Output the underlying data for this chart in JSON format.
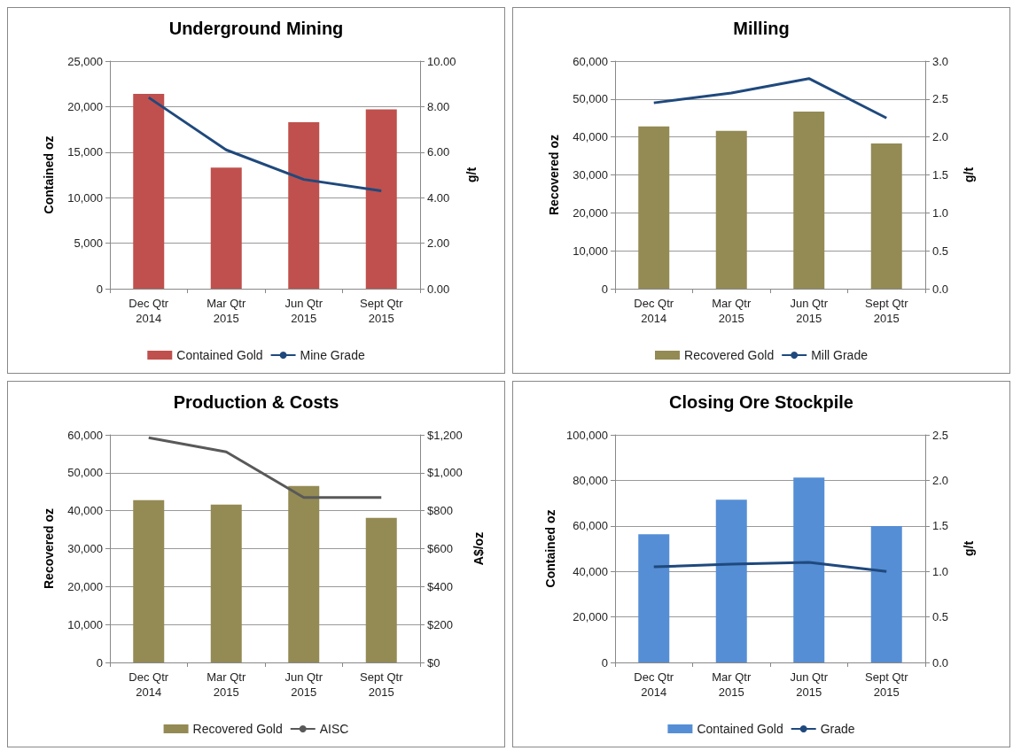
{
  "chart_data": [
    {
      "type": "bar",
      "title": "Underground Mining",
      "ylabel": "Contained oz",
      "y2label": "g/t",
      "categories": [
        "Dec Qtr\n2014",
        "Mar Qtr\n2015",
        "Jun Qtr\n2015",
        "Sept Qtr\n2015"
      ],
      "series": [
        {
          "name": "Contained Gold",
          "color": "#c0504d",
          "values": [
            21400,
            13300,
            18300,
            19700
          ]
        },
        {
          "name": "Mine Grade",
          "type": "line",
          "axis": "y2",
          "color": "#1f497d",
          "values": [
            8.4,
            6.1,
            4.8,
            4.3
          ]
        }
      ],
      "ylim": [
        0,
        25000
      ],
      "yticks": [
        {
          "value": 0,
          "label": "0"
        },
        {
          "value": 5000,
          "label": "5,000"
        },
        {
          "value": 10000,
          "label": "10,000"
        },
        {
          "value": 15000,
          "label": "15,000"
        },
        {
          "value": 20000,
          "label": "20,000"
        },
        {
          "value": 25000,
          "label": "25,000"
        }
      ],
      "y2lim": [
        0,
        10
      ],
      "y2ticks": [
        {
          "value": 0,
          "label": "0.00"
        },
        {
          "value": 2,
          "label": "2.00"
        },
        {
          "value": 4,
          "label": "4.00"
        },
        {
          "value": 6,
          "label": "6.00"
        },
        {
          "value": 8,
          "label": "8.00"
        },
        {
          "value": 10,
          "label": "10.00"
        }
      ],
      "grid": "y",
      "legend": "bottom",
      "marker": "none"
    },
    {
      "type": "bar",
      "title": "Milling",
      "ylabel": "Recovered oz",
      "y2label": "g/t",
      "categories": [
        "Dec Qtr\n2014",
        "Mar Qtr\n2015",
        "Jun Qtr\n2015",
        "Sept Qtr\n2015"
      ],
      "series": [
        {
          "name": "Recovered Gold",
          "color": "#948a54",
          "values": [
            42800,
            41600,
            46700,
            38300
          ]
        },
        {
          "name": "Mill Grade",
          "type": "line",
          "axis": "y2",
          "color": "#1f497d",
          "values": [
            2.45,
            2.58,
            2.77,
            2.25
          ]
        }
      ],
      "ylim": [
        0,
        60000
      ],
      "yticks": [
        {
          "value": 0,
          "label": "0"
        },
        {
          "value": 10000,
          "label": "10,000"
        },
        {
          "value": 20000,
          "label": "20,000"
        },
        {
          "value": 30000,
          "label": "30,000"
        },
        {
          "value": 40000,
          "label": "40,000"
        },
        {
          "value": 50000,
          "label": "50,000"
        },
        {
          "value": 60000,
          "label": "60,000"
        }
      ],
      "y2lim": [
        0,
        3
      ],
      "y2ticks": [
        {
          "value": 0,
          "label": "0.0"
        },
        0.5,
        {
          "value": 1,
          "label": "1.0"
        },
        1.5,
        {
          "value": 2,
          "label": "2.0"
        },
        2.5,
        {
          "value": 3,
          "label": "3.0"
        }
      ],
      "grid": "y",
      "legend": "bottom",
      "marker": "none"
    },
    {
      "type": "bar",
      "title": "Production & Costs",
      "ylabel": "Recovered oz",
      "y2label": "A$/oz",
      "categories": [
        "Dec Qtr\n2014",
        "Mar Qtr\n2015",
        "Jun Qtr\n2015",
        "Sept Qtr\n2015"
      ],
      "series": [
        {
          "name": "Recovered Gold",
          "color": "#948a54",
          "values": [
            42800,
            41600,
            46500,
            38100
          ]
        },
        {
          "name": "AISC",
          "type": "line",
          "axis": "y2",
          "color": "#595959",
          "values": [
            1185,
            1110,
            870,
            870
          ]
        }
      ],
      "ylim": [
        0,
        60000
      ],
      "yticks": [
        {
          "value": 0,
          "label": "0"
        },
        {
          "value": 10000,
          "label": "10,000"
        },
        {
          "value": 20000,
          "label": "20,000"
        },
        {
          "value": 30000,
          "label": "30,000"
        },
        {
          "value": 40000,
          "label": "40,000"
        },
        {
          "value": 50000,
          "label": "50,000"
        },
        {
          "value": 60000,
          "label": "60,000"
        }
      ],
      "y2lim": [
        0,
        1200
      ],
      "y2ticks": [
        {
          "value": 0,
          "label": "$0"
        },
        {
          "value": 200,
          "label": "$200"
        },
        {
          "value": 400,
          "label": "$400"
        },
        {
          "value": 600,
          "label": "$600"
        },
        {
          "value": 800,
          "label": "$800"
        },
        {
          "value": 1000,
          "label": "$1,000"
        },
        {
          "value": 1200,
          "label": "$1,200"
        }
      ],
      "grid": "y",
      "legend": "bottom",
      "marker": "none"
    },
    {
      "type": "bar",
      "title": "Closing Ore Stockpile",
      "ylabel": "Contained oz",
      "y2label": "g/t",
      "categories": [
        "Dec Qtr\n2014",
        "Mar Qtr\n2015",
        "Jun Qtr\n2015",
        "Sept Qtr\n2015"
      ],
      "series": [
        {
          "name": "Contained Gold",
          "color": "#558ed5",
          "values": [
            56300,
            71500,
            81200,
            59900
          ]
        },
        {
          "name": "Grade",
          "type": "line",
          "axis": "y2",
          "color": "#1f497d",
          "values": [
            1.05,
            1.08,
            1.1,
            1.0
          ]
        }
      ],
      "ylim": [
        0,
        100000
      ],
      "yticks": [
        {
          "value": 0,
          "label": "0"
        },
        {
          "value": 20000,
          "label": "20,000"
        },
        {
          "value": 40000,
          "label": "40,000"
        },
        {
          "value": 60000,
          "label": "60,000"
        },
        {
          "value": 80000,
          "label": "80,000"
        },
        {
          "value": 100000,
          "label": "100,000"
        }
      ],
      "y2lim": [
        0,
        2.5
      ],
      "y2ticks": [
        {
          "value": 0,
          "label": "0.0"
        },
        0.5,
        {
          "value": 1,
          "label": "1.0"
        },
        1.5,
        {
          "value": 2,
          "label": "2.0"
        },
        2.5
      ],
      "grid": "y",
      "legend": "bottom",
      "marker": "none"
    }
  ]
}
